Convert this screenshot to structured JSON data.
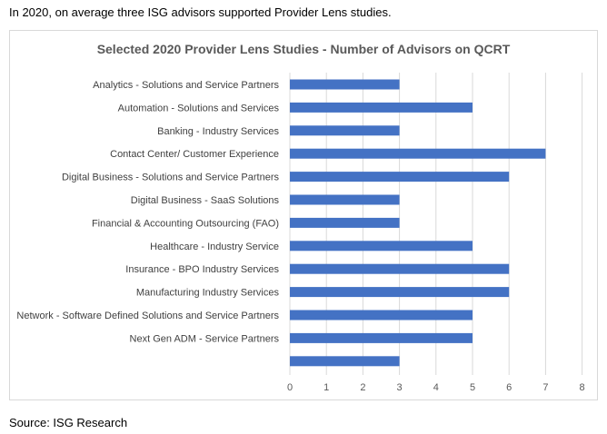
{
  "caption": "In 2020, on average three ISG advisors supported Provider Lens studies.",
  "source": "Source: ISG Research",
  "chart_data": {
    "type": "bar",
    "orientation": "horizontal",
    "title": "Selected 2020 Provider Lens Studies - Number of Advisors on QCRT",
    "xlabel": "",
    "ylabel": "",
    "xlim": [
      0,
      8
    ],
    "xticks": [
      "0",
      "1",
      "2",
      "3",
      "4",
      "5",
      "6",
      "7",
      "8"
    ],
    "grid": "vertical",
    "legend": "none",
    "bar_color": "#4472c4",
    "categories": [
      "Analytics - Solutions and Service Partners",
      "Automation - Solutions and Services",
      "Banking - Industry Services",
      "Contact Center/ Customer Experience",
      "Digital Business  - Solutions and Service Partners",
      "Digital Business - SaaS Solutions",
      "Financial & Accounting Outsourcing (FAO)",
      "Healthcare - Industry Service",
      "Insurance - BPO Industry Services",
      "Manufacturing Industry Services",
      "Network - Software Defined Solutions and Service Partners",
      "Next Gen ADM - Service Partners",
      ""
    ],
    "values": [
      3,
      5,
      3,
      7,
      6,
      3,
      3,
      5,
      6,
      6,
      5,
      5,
      3
    ]
  }
}
